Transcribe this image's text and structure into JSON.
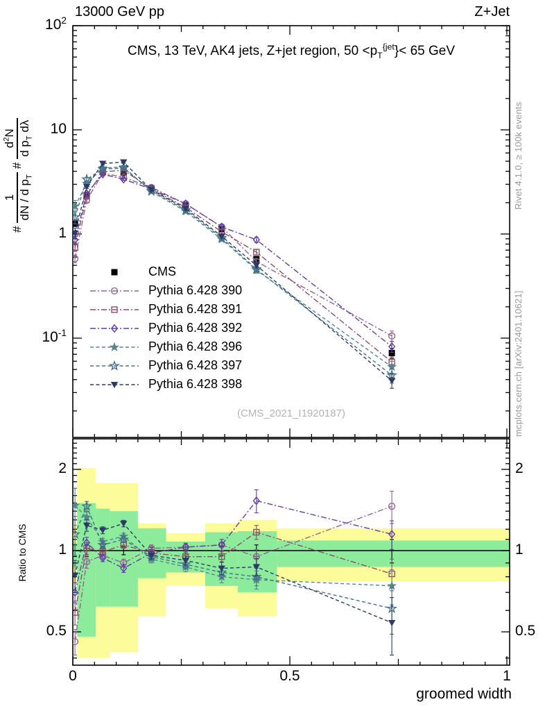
{
  "header": {
    "energy": "13000 GeV pp",
    "process": "Z+Jet"
  },
  "panel_title": "CMS, 13 TeV, AK4 jets, Z+jet region, 50 <p_{T}^{{jet}}< 65 GeV",
  "watermark": "(CMS_2021_I1920187)",
  "right_credits": {
    "generator": "Rivet 4.1.0, ≥ 100k events",
    "source": "mcplots.cern.ch [arXiv:2401.10621]"
  },
  "y_axis_title": {
    "prefix1": "#",
    "frac1_num": "1",
    "frac1_den": "dN / d p_{T}",
    "prefix2": "#",
    "frac2_num": "d^{2}N",
    "frac2_den": "d p_{T} dλ"
  },
  "ratio_axis_title": "Ratio to CMS",
  "chart_data": {
    "type": "line",
    "xlabel": "groomed width",
    "xlim": [
      0,
      1.006
    ],
    "main_ylog": true,
    "main_ylim": [
      0.011,
      100
    ],
    "ratio_ylim": [
      0.376,
      2.6
    ],
    "x_ticks": [
      {
        "v": 0,
        "label": "0"
      },
      {
        "v": 0.5,
        "label": "0.5"
      },
      {
        "v": 1,
        "label": "1"
      }
    ],
    "main_y_ticks": [
      {
        "v": 100,
        "label": "10^{2}"
      },
      {
        "v": 10,
        "label": "10"
      },
      {
        "v": 1,
        "label": "1"
      },
      {
        "v": 0.1,
        "label": "10^{-1}"
      }
    ],
    "ratio_y_ticks": [
      {
        "v": 2,
        "label": "2"
      },
      {
        "v": 1,
        "label": "1"
      },
      {
        "v": 0.5,
        "label": "0.5"
      }
    ],
    "x": [
      0.005,
      0.032,
      0.069,
      0.117,
      0.181,
      0.26,
      0.343,
      0.423,
      0.735
    ],
    "bin_edges": [
      0,
      0.01,
      0.053,
      0.085,
      0.15,
      0.215,
      0.305,
      0.38,
      0.47,
      1.0
    ],
    "series": [
      {
        "name": "CMS",
        "marker": "square-filled",
        "color": "#000000",
        "line": "none",
        "values": [
          1.26,
          2.3,
          4.0,
          3.9,
          2.75,
          1.9,
          1.11,
          0.575,
          0.072
        ],
        "errors": [
          0.08,
          0.12,
          0.15,
          0.15,
          0.1,
          0.07,
          0.05,
          0.035,
          0.008
        ],
        "ratio": null,
        "ratio_errors": [
          0.05,
          0.05,
          0.035,
          0.035,
          0.03,
          0.03,
          0.04,
          0.05,
          0.1
        ]
      },
      {
        "name": "Pythia 6.428 390",
        "marker": "circle-open",
        "color": "#8f6593",
        "line": "dashdot",
        "values": [
          0.58,
          2.1,
          3.85,
          3.5,
          2.8,
          1.95,
          1.17,
          0.545,
          0.105
        ],
        "errors": [
          0.05,
          0.08,
          0.1,
          0.1,
          0.08,
          0.06,
          0.05,
          0.03,
          0.012
        ],
        "ratio": [
          0.46,
          0.91,
          0.96,
          0.9,
          1.02,
          1.03,
          1.05,
          0.95,
          1.46
        ],
        "ratio_errors": [
          0.05,
          0.05,
          0.03,
          0.03,
          0.03,
          0.035,
          0.05,
          0.06,
          0.2
        ]
      },
      {
        "name": "Pythia 6.428 391",
        "marker": "square-open",
        "color": "#8f4f63",
        "line": "dashdot",
        "values": [
          0.74,
          2.35,
          3.95,
          4.1,
          2.7,
          1.8,
          1.05,
          0.67,
          0.059
        ],
        "errors": [
          0.06,
          0.09,
          0.1,
          0.1,
          0.08,
          0.06,
          0.04,
          0.04,
          0.007
        ],
        "ratio": [
          0.59,
          1.02,
          0.99,
          1.05,
          0.98,
          0.95,
          0.95,
          1.17,
          0.82
        ],
        "ratio_errors": [
          0.06,
          0.05,
          0.03,
          0.03,
          0.03,
          0.035,
          0.04,
          0.07,
          0.11
        ]
      },
      {
        "name": "Pythia 6.428 392",
        "marker": "diamond-open",
        "color": "#6040a0",
        "line": "dashdot",
        "values": [
          0.88,
          2.45,
          3.75,
          3.35,
          2.7,
          1.95,
          1.17,
          0.88,
          0.083
        ],
        "errors": [
          0.07,
          0.09,
          0.1,
          0.09,
          0.08,
          0.06,
          0.05,
          0.05,
          0.01
        ],
        "ratio": [
          0.7,
          1.07,
          0.94,
          0.86,
          0.98,
          1.03,
          1.05,
          1.53,
          1.15
        ],
        "ratio_errors": [
          0.06,
          0.05,
          0.03,
          0.03,
          0.03,
          0.035,
          0.05,
          0.15,
          0.14
        ]
      },
      {
        "name": "Pythia 6.428 396",
        "marker": "star-filled",
        "color": "#56858e",
        "line": "dashed",
        "values": [
          1.85,
          3.05,
          4.3,
          4.4,
          2.55,
          1.65,
          0.89,
          0.45,
          0.053
        ],
        "errors": [
          0.25,
          0.12,
          0.12,
          0.12,
          0.08,
          0.06,
          0.04,
          0.03,
          0.007
        ],
        "ratio": [
          1.47,
          1.33,
          1.08,
          1.13,
          0.93,
          0.87,
          0.8,
          0.78,
          0.74
        ],
        "ratio_errors": [
          0.23,
          0.06,
          0.03,
          0.03,
          0.03,
          0.035,
          0.04,
          0.06,
          0.11
        ]
      },
      {
        "name": "Pythia 6.428 397",
        "marker": "star-open",
        "color": "#47708a",
        "line": "dashed",
        "values": [
          1.45,
          3.35,
          4.2,
          4.3,
          2.6,
          1.7,
          0.92,
          0.46,
          0.044
        ],
        "errors": [
          0.2,
          0.13,
          0.12,
          0.12,
          0.08,
          0.06,
          0.04,
          0.03,
          0.007
        ],
        "ratio": [
          1.15,
          1.46,
          1.05,
          1.1,
          0.95,
          0.89,
          0.83,
          0.8,
          0.61
        ],
        "ratio_errors": [
          0.19,
          0.06,
          0.03,
          0.03,
          0.03,
          0.035,
          0.04,
          0.06,
          0.12
        ]
      },
      {
        "name": "Pythia 6.428 398",
        "marker": "triangle-down-filled",
        "color": "#2b3a66",
        "line": "dashed",
        "values": [
          1.02,
          2.85,
          4.75,
          4.9,
          2.65,
          1.75,
          0.95,
          0.5,
          0.039
        ],
        "errors": [
          0.12,
          0.11,
          0.13,
          0.13,
          0.08,
          0.06,
          0.04,
          0.03,
          0.006
        ],
        "ratio": [
          0.81,
          1.24,
          1.19,
          1.26,
          0.96,
          0.92,
          0.86,
          0.87,
          0.54
        ],
        "ratio_errors": [
          0.11,
          0.06,
          0.035,
          0.035,
          0.03,
          0.035,
          0.045,
          0.065,
          0.13
        ]
      }
    ],
    "ratio_bands": [
      {
        "xlo": 0.0,
        "xhi": 0.01,
        "yellow": [
          0.76,
          1.26
        ],
        "green": [
          0.87,
          1.07
        ]
      },
      {
        "xlo": 0.01,
        "xhi": 0.053,
        "yellow": [
          0.4,
          2.02
        ],
        "green": [
          0.48,
          1.5
        ]
      },
      {
        "xlo": 0.053,
        "xhi": 0.085,
        "yellow": [
          0.4,
          1.78
        ],
        "green": [
          0.62,
          1.43
        ]
      },
      {
        "xlo": 0.085,
        "xhi": 0.15,
        "yellow": [
          0.42,
          1.78
        ],
        "green": [
          0.62,
          1.4
        ]
      },
      {
        "xlo": 0.15,
        "xhi": 0.215,
        "yellow": [
          0.57,
          1.26
        ],
        "green": [
          0.79,
          1.21
        ]
      },
      {
        "xlo": 0.215,
        "xhi": 0.305,
        "yellow": [
          0.74,
          1.16
        ],
        "green": [
          0.83,
          1.08
        ]
      },
      {
        "xlo": 0.305,
        "xhi": 0.38,
        "yellow": [
          0.61,
          1.26
        ],
        "green": [
          0.74,
          1.17
        ]
      },
      {
        "xlo": 0.38,
        "xhi": 0.47,
        "yellow": [
          0.57,
          1.3
        ],
        "green": [
          0.7,
          1.18
        ]
      },
      {
        "xlo": 0.47,
        "xhi": 1.006,
        "yellow": [
          0.77,
          1.21
        ],
        "green": [
          0.87,
          1.09
        ]
      }
    ],
    "band_colors": {
      "yellow": "#fcfc9a",
      "green": "#8cec9c"
    },
    "grid": false,
    "legend_position": "upper-left-inside"
  }
}
